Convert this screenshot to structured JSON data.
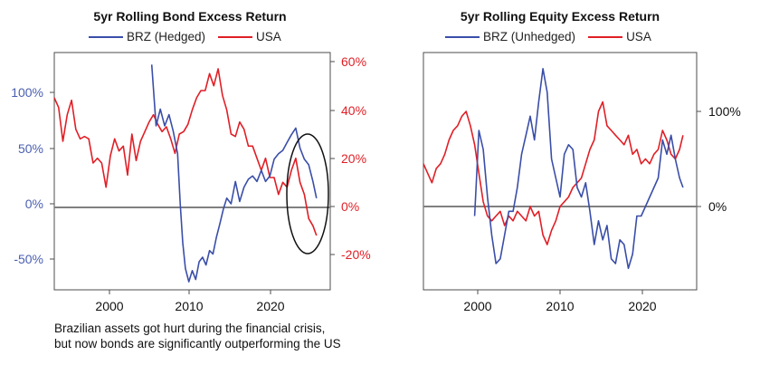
{
  "charts": [
    {
      "title": "5yr Rolling Bond Excess Return",
      "legend": [
        "BRZ (Hedged)",
        "USA"
      ],
      "xticks": [
        "2000",
        "2010",
        "2020"
      ],
      "yleft_ticks": [
        "100%",
        "50%",
        "0%",
        "-50%"
      ],
      "yright_ticks": [
        "60%",
        "40%",
        "20%",
        "0%",
        "-20%"
      ]
    },
    {
      "title": "5yr Rolling Equity Excess Return",
      "legend": [
        "BRZ (Unhedged)",
        "USA"
      ],
      "xticks": [
        "2000",
        "2010",
        "2020"
      ],
      "yright_ticks": [
        "100%",
        "0%"
      ]
    }
  ],
  "caption": [
    "Brazilian assets got hurt during the financial crisis,",
    "but now bonds are significantly outperforming the US"
  ],
  "colors": {
    "brz": "#3a4ea8",
    "usa": "#e01f26",
    "axis": "#4d4d4d",
    "zero": "#808080"
  },
  "chart_data": [
    {
      "type": "line",
      "title": "5yr Rolling Bond Excess Return",
      "x_range": [
        1994,
        2026
      ],
      "series": [
        {
          "name": "BRZ (Hedged)",
          "axis": "left",
          "ylim": [
            -80,
            125
          ],
          "x": [
            2005.3,
            2005.8,
            2006.3,
            2006.8,
            2007.3,
            2007.8,
            2008.3,
            2008.6,
            2008.9,
            2009.2,
            2009.6,
            2010.0,
            2010.4,
            2010.8,
            2011.2,
            2011.6,
            2012.0,
            2012.4,
            2012.8,
            2013.2,
            2013.6,
            2014.0,
            2014.5,
            2015.0,
            2015.5,
            2016.0,
            2016.5,
            2017.0,
            2017.5,
            2018.0,
            2018.5,
            2019.0,
            2019.5,
            2020.0,
            2020.5,
            2021.0,
            2021.5,
            2022.0,
            2022.5,
            2023.0,
            2023.5,
            2024.0,
            2024.4
          ],
          "values": [
            125,
            70,
            85,
            70,
            80,
            65,
            45,
            0,
            -35,
            -58,
            -70,
            -60,
            -68,
            -52,
            -48,
            -55,
            -42,
            -45,
            -30,
            -18,
            -5,
            5,
            0,
            20,
            2,
            15,
            22,
            25,
            20,
            30,
            20,
            25,
            40,
            45,
            48,
            55,
            62,
            68,
            50,
            40,
            35,
            20,
            5
          ]
        },
        {
          "name": "USA",
          "axis": "right",
          "ylim": [
            -35,
            62
          ],
          "x": [
            1994,
            1994.5,
            1995,
            1995.5,
            1996,
            1996.5,
            1997,
            1997.5,
            1998,
            1998.5,
            1999,
            1999.5,
            2000,
            2000.5,
            2001,
            2001.5,
            2002,
            2002.5,
            2003,
            2003.5,
            2004,
            2004.5,
            2005,
            2005.5,
            2006,
            2006.5,
            2007,
            2007.5,
            2008,
            2008.5,
            2009,
            2009.5,
            2010,
            2010.5,
            2011,
            2011.5,
            2012,
            2012.5,
            2013,
            2013.5,
            2014,
            2014.5,
            2015,
            2015.5,
            2016,
            2016.5,
            2017,
            2017.5,
            2018,
            2018.5,
            2019,
            2019.5,
            2020,
            2020.5,
            2021,
            2021.5,
            2022,
            2022.5,
            2023,
            2023.5,
            2024,
            2024.4
          ],
          "values": [
            45,
            41,
            27,
            38,
            44,
            32,
            28,
            29,
            28,
            18,
            20,
            18,
            8,
            21,
            28,
            23,
            25,
            13,
            30,
            19,
            27,
            31,
            35,
            38,
            34,
            31,
            33,
            28,
            22,
            30,
            31,
            34,
            40,
            45,
            48,
            48,
            55,
            50,
            57,
            46,
            40,
            30,
            29,
            35,
            32,
            25,
            25,
            20,
            15,
            20,
            12,
            12,
            5,
            10,
            8,
            15,
            20,
            10,
            5,
            -5,
            -8,
            -12
          ]
        }
      ],
      "annotation": "ellipse around recent divergence"
    },
    {
      "type": "line",
      "title": "5yr Rolling Equity Excess Return",
      "x_range": [
        1994,
        2026
      ],
      "series": [
        {
          "name": "BRZ (Unhedged)",
          "axis": "right",
          "ylim": [
            -75,
            155
          ],
          "x": [
            2000,
            2000.5,
            2001,
            2001.5,
            2002,
            2002.5,
            2003,
            2003.5,
            2004,
            2004.5,
            2005,
            2005.5,
            2006,
            2006.5,
            2007,
            2007.5,
            2008,
            2008.5,
            2009,
            2009.5,
            2010,
            2010.5,
            2011,
            2011.5,
            2012,
            2012.5,
            2013,
            2013.5,
            2014,
            2014.5,
            2015,
            2015.5,
            2016,
            2016.5,
            2017,
            2017.5,
            2018,
            2018.5,
            2019,
            2019.5,
            2020,
            2020.5,
            2021,
            2021.5,
            2022,
            2022.5,
            2023,
            2023.5,
            2024,
            2024.4
          ],
          "values": [
            -10,
            80,
            60,
            10,
            -30,
            -60,
            -55,
            -30,
            -5,
            -5,
            20,
            55,
            75,
            95,
            70,
            110,
            145,
            120,
            50,
            30,
            10,
            55,
            65,
            60,
            20,
            10,
            25,
            -5,
            -40,
            -15,
            -35,
            -20,
            -55,
            -60,
            -35,
            -40,
            -65,
            -50,
            -10,
            -10,
            0,
            10,
            20,
            30,
            70,
            55,
            75,
            50,
            30,
            20
          ]
        },
        {
          "name": "USA",
          "axis": "right",
          "ylim": [
            -75,
            155
          ],
          "x": [
            1994,
            1994.5,
            1995,
            1995.5,
            1996,
            1996.5,
            1997,
            1997.5,
            1998,
            1998.5,
            1999,
            1999.5,
            2000,
            2000.5,
            2001,
            2001.5,
            2002,
            2002.5,
            2003,
            2003.5,
            2004,
            2004.5,
            2005,
            2005.5,
            2006,
            2006.5,
            2007,
            2007.5,
            2008,
            2008.5,
            2009,
            2009.5,
            2010,
            2010.5,
            2011,
            2011.5,
            2012,
            2012.5,
            2013,
            2013.5,
            2014,
            2014.5,
            2015,
            2015.5,
            2016,
            2016.5,
            2017,
            2017.5,
            2018,
            2018.5,
            2019,
            2019.5,
            2020,
            2020.5,
            2021,
            2021.5,
            2022,
            2022.5,
            2023,
            2023.5,
            2024,
            2024.4
          ],
          "values": [
            45,
            35,
            25,
            40,
            45,
            55,
            70,
            80,
            85,
            95,
            100,
            85,
            65,
            35,
            5,
            -10,
            -15,
            -10,
            -5,
            -20,
            -10,
            -15,
            -5,
            -10,
            -15,
            0,
            -10,
            -5,
            -30,
            -40,
            -25,
            -15,
            0,
            5,
            10,
            20,
            25,
            30,
            45,
            60,
            70,
            100,
            110,
            85,
            80,
            75,
            70,
            65,
            75,
            55,
            60,
            45,
            50,
            45,
            55,
            60,
            80,
            70,
            55,
            50,
            60,
            75
          ]
        }
      ]
    }
  ]
}
